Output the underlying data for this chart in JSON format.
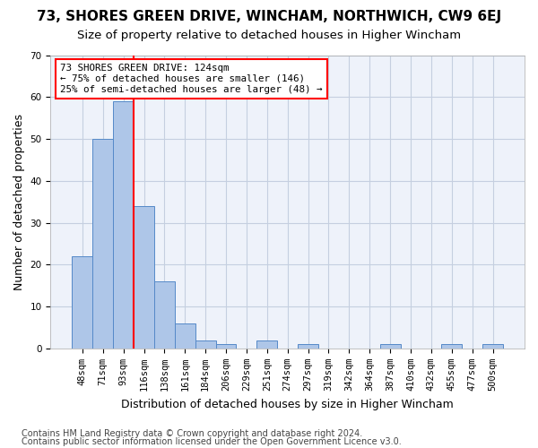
{
  "title1": "73, SHORES GREEN DRIVE, WINCHAM, NORTHWICH, CW9 6EJ",
  "title2": "Size of property relative to detached houses in Higher Wincham",
  "xlabel": "Distribution of detached houses by size in Higher Wincham",
  "ylabel": "Number of detached properties",
  "bar_values": [
    22,
    50,
    59,
    34,
    16,
    6,
    2,
    1,
    0,
    2,
    0,
    1,
    0,
    0,
    0,
    1,
    0,
    0,
    1,
    0,
    1
  ],
  "bar_labels": [
    "48sqm",
    "71sqm",
    "93sqm",
    "116sqm",
    "138sqm",
    "161sqm",
    "184sqm",
    "206sqm",
    "229sqm",
    "251sqm",
    "274sqm",
    "297sqm",
    "319sqm",
    "342sqm",
    "364sqm",
    "387sqm",
    "410sqm",
    "432sqm",
    "455sqm",
    "477sqm",
    "500sqm"
  ],
  "bar_color": "#aec6e8",
  "bar_edge_color": "#5589c8",
  "vline_color": "red",
  "vline_pos": 2.5,
  "annotation_text": "73 SHORES GREEN DRIVE: 124sqm\n← 75% of detached houses are smaller (146)\n25% of semi-detached houses are larger (48) →",
  "annotation_box_color": "white",
  "annotation_box_edge": "red",
  "ylim": [
    0,
    70
  ],
  "yticks": [
    0,
    10,
    20,
    30,
    40,
    50,
    60,
    70
  ],
  "footer1": "Contains HM Land Registry data © Crown copyright and database right 2024.",
  "footer2": "Contains public sector information licensed under the Open Government Licence v3.0.",
  "bg_color": "#eef2fa",
  "grid_color": "#c5cfe0",
  "title1_fontsize": 11,
  "title2_fontsize": 9.5,
  "xlabel_fontsize": 9,
  "ylabel_fontsize": 9,
  "tick_fontsize": 7.5,
  "footer_fontsize": 7
}
